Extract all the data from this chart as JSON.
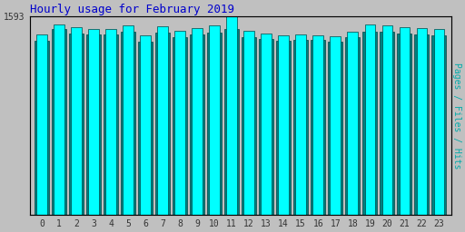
{
  "title": "Hourly usage for February 2019",
  "title_color": "#0000cc",
  "title_fontsize": 9,
  "ylabel": "Pages / Files / Hits",
  "ylabel_color": "#00aaaa",
  "background_color": "#c0c0c0",
  "plot_bg_color": "#c0c0c0",
  "ylim_max": 1593,
  "hours": [
    0,
    1,
    2,
    3,
    4,
    5,
    6,
    7,
    8,
    9,
    10,
    11,
    12,
    13,
    14,
    15,
    16,
    17,
    18,
    19,
    20,
    21,
    22,
    23
  ],
  "pages": [
    1400,
    1490,
    1460,
    1450,
    1450,
    1470,
    1390,
    1465,
    1430,
    1450,
    1465,
    1490,
    1430,
    1415,
    1400,
    1405,
    1405,
    1395,
    1430,
    1475,
    1470,
    1460,
    1450,
    1440
  ],
  "hits": [
    1450,
    1530,
    1505,
    1495,
    1490,
    1520,
    1440,
    1515,
    1480,
    1500,
    1520,
    1593,
    1480,
    1460,
    1445,
    1450,
    1445,
    1435,
    1475,
    1530,
    1520,
    1510,
    1500,
    1490
  ],
  "bar_color_pages": "#008080",
  "bar_color_hits": "#00ffff",
  "bar_edge_color": "#004444",
  "bar_width": 0.38,
  "font_family": "monospace"
}
